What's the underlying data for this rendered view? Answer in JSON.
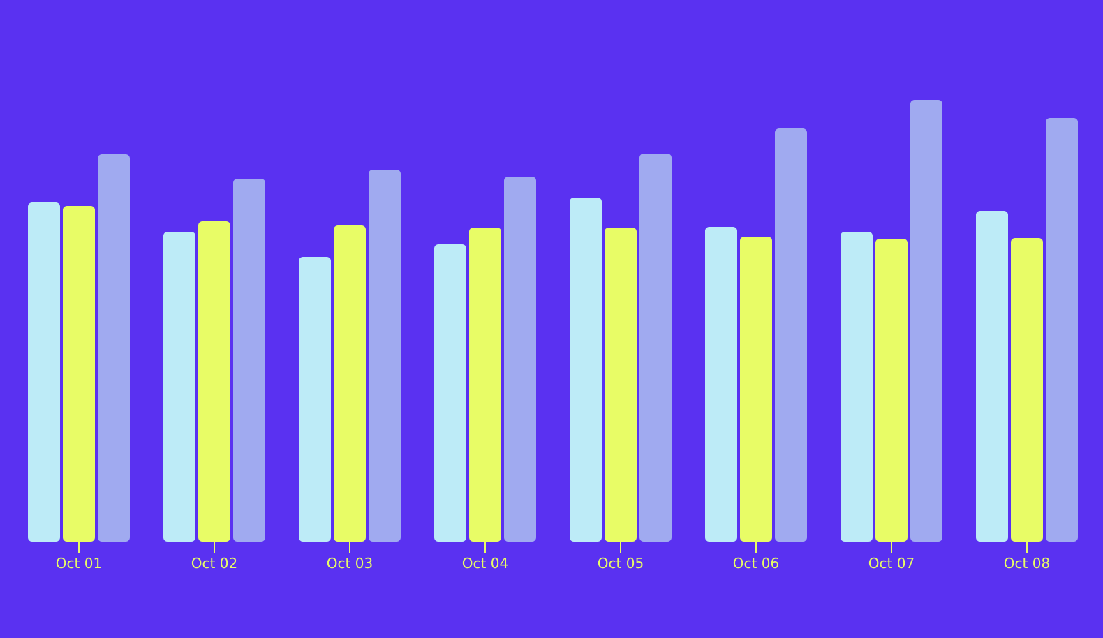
{
  "chart_data": {
    "type": "bar",
    "categories": [
      "Oct 01",
      "Oct 02",
      "Oct 03",
      "Oct 04",
      "Oct 05",
      "Oct 06",
      "Oct 07",
      "Oct 08"
    ],
    "series": [
      {
        "color": "#bdebf7",
        "values": [
          48.6,
          44.4,
          40.8,
          42.6,
          49.3,
          45.1,
          44.4,
          47.4
        ]
      },
      {
        "color": "#e8fc66",
        "values": [
          48.1,
          45.9,
          45.3,
          45.0,
          45.0,
          43.7,
          43.4,
          43.5
        ]
      },
      {
        "color": "#a0aaf0",
        "values": [
          55.5,
          52.0,
          53.3,
          52.3,
          55.6,
          59.2,
          63.3,
          60.7
        ]
      }
    ],
    "ylim": [
      0,
      64
    ],
    "grid": false,
    "legend": false,
    "background_color": "#5a31f1",
    "label_color": "#e8fc66"
  }
}
